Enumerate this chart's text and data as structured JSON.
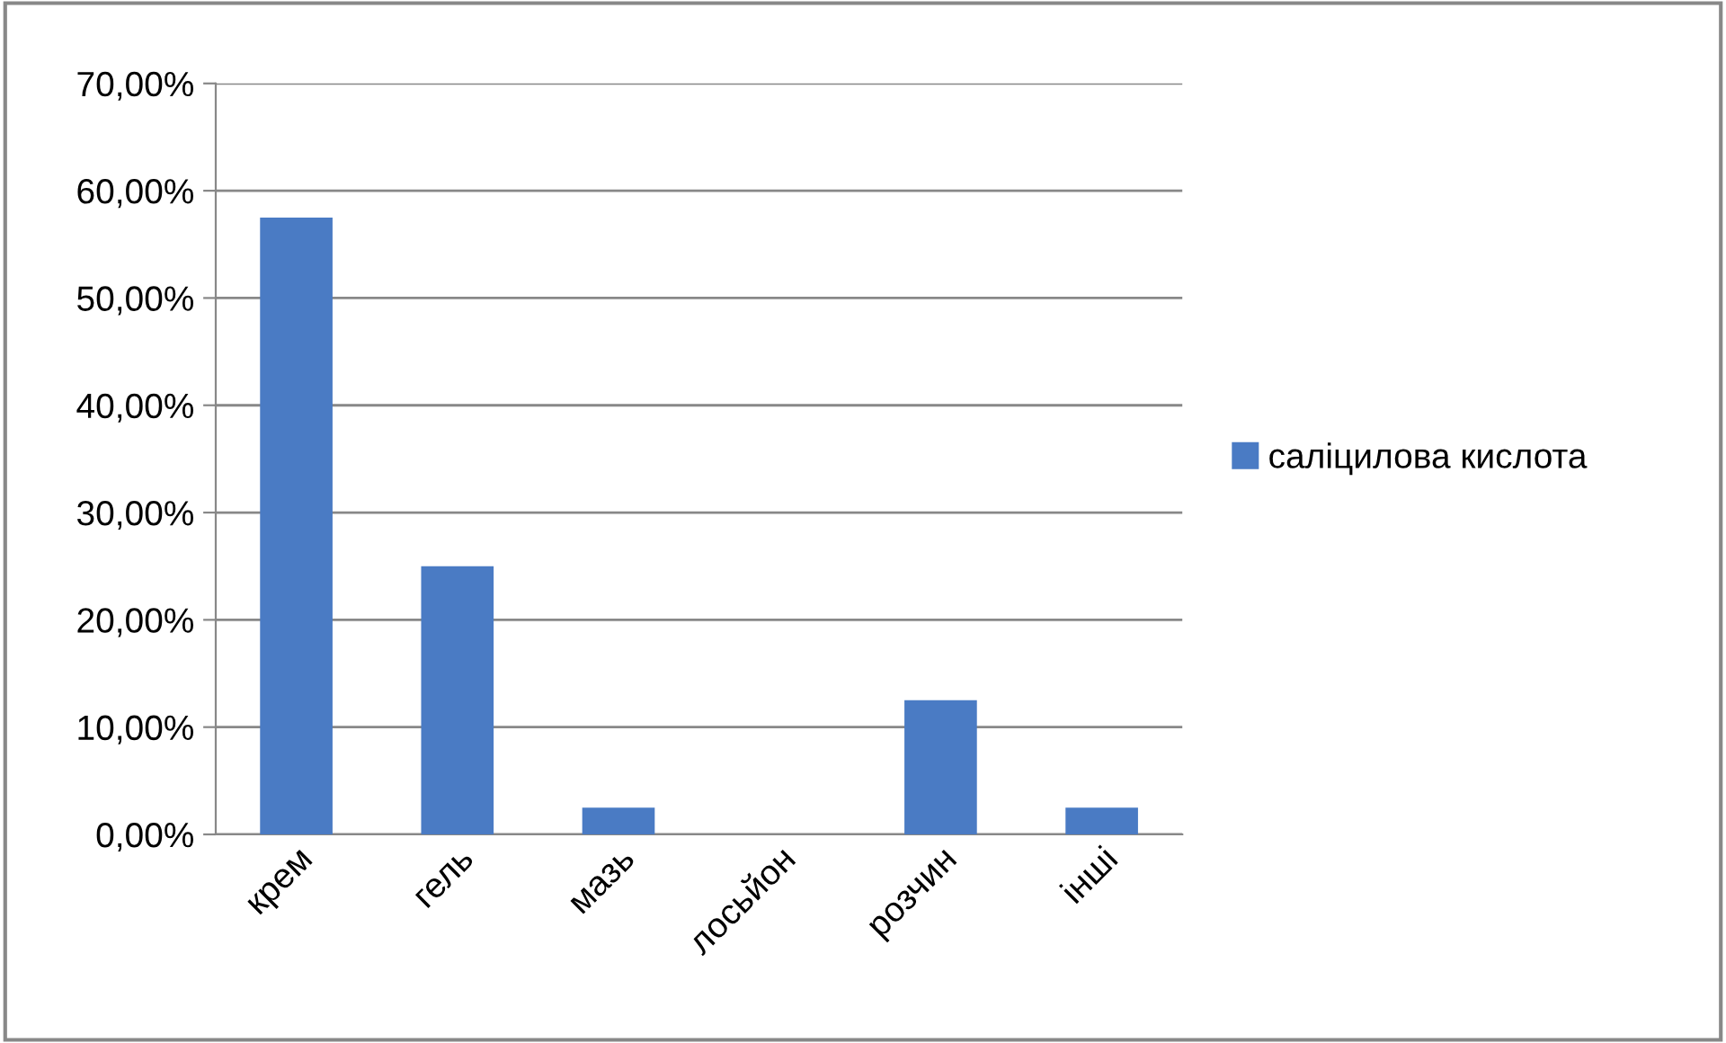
{
  "chart_data": {
    "type": "bar",
    "categories": [
      "крем",
      "гель",
      "мазь",
      "лосьйон",
      "розчин",
      "інші"
    ],
    "series": [
      {
        "name": "саліцилова кислота",
        "color": "#4a7bc4",
        "values": [
          57.5,
          25,
          2.5,
          0,
          12.5,
          2.5
        ]
      }
    ],
    "ylim": [
      0,
      70
    ],
    "yticks": [
      {
        "value": 0,
        "label": "0,00%"
      },
      {
        "value": 10,
        "label": "10,00%"
      },
      {
        "value": 20,
        "label": "20,00%"
      },
      {
        "value": 30,
        "label": "30,00%"
      },
      {
        "value": 40,
        "label": "40,00%"
      },
      {
        "value": 50,
        "label": "50,00%"
      },
      {
        "value": 60,
        "label": "60,00%"
      },
      {
        "value": 70,
        "label": "70,00%"
      }
    ],
    "grid": "y",
    "legend": "right"
  }
}
